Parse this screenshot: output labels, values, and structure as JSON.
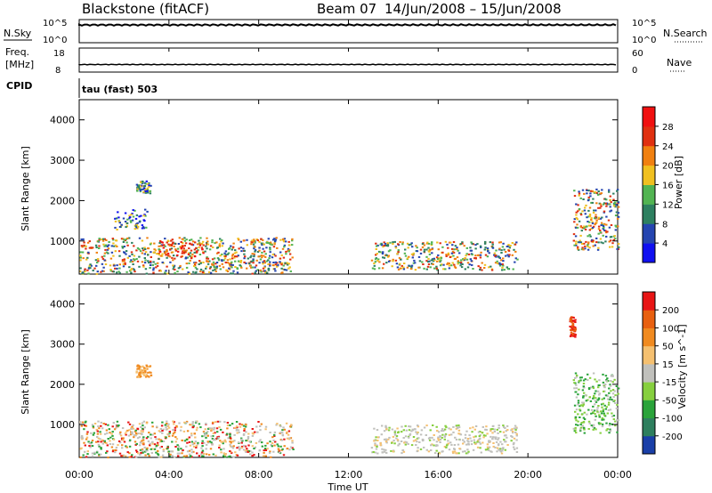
{
  "header": {
    "station": "Blackstone (fitACF)",
    "beam": "Beam 07",
    "date_range": "14/Jun/2008 – 15/Jun/2008"
  },
  "noise_panel": {
    "left_label": "N.Sky",
    "right_label": "N.Search",
    "left_top": "10^5",
    "left_bottom": "10^0",
    "right_top": "10^5",
    "right_bottom": "10^0"
  },
  "freq_panel": {
    "left_label_1": "Freq.",
    "left_label_2": "[MHz]",
    "left_top": "18",
    "left_bottom": "8",
    "right_label": "Nave",
    "right_top": "60",
    "right_bottom": "0"
  },
  "cpid_panel": {
    "label": "CPID",
    "value": "tau (fast) 503"
  },
  "x_axis": {
    "label": "Time UT",
    "ticks": [
      "00:00",
      "04:00",
      "08:00",
      "12:00",
      "16:00",
      "20:00",
      "00:00"
    ]
  },
  "colors": {
    "velocity_positive_high": "#1a3fa8",
    "velocity_positive_mid": "#2aa33a",
    "velocity_low": "#c0c0bc",
    "velocity_negative_mid": "#f5a020",
    "velocity_negative_high": "#e81515"
  },
  "chart_data": [
    {
      "type": "heatmap",
      "title": "Power",
      "ylabel": "Slant Range [km]",
      "xlabel": "",
      "xlim": [
        "00:00",
        "24:00"
      ],
      "ylim": [
        180,
        4500
      ],
      "y_ticks": [
        "1000",
        "2000",
        "3000",
        "4000"
      ],
      "colorbar": {
        "label": "Power [dB]",
        "ticks": [
          "4",
          "8",
          "12",
          "16",
          "20",
          "24",
          "28"
        ],
        "colors": [
          "#1010f0",
          "#2545b0",
          "#2e8060",
          "#52b452",
          "#f0c020",
          "#f08010",
          "#e03010",
          "#f01010"
        ]
      },
      "regions": [
        {
          "start": "00:00",
          "end": "09:30",
          "range": [
            200,
            1100
          ],
          "level": "strong"
        },
        {
          "start": "03:30",
          "end": "05:30",
          "range": [
            600,
            1000
          ],
          "level": "very strong"
        },
        {
          "start": "01:30",
          "end": "03:00",
          "range": [
            1300,
            1800
          ],
          "level": "moderate"
        },
        {
          "start": "02:30",
          "end": "03:10",
          "range": [
            2200,
            2500
          ],
          "level": "moderate"
        },
        {
          "start": "13:00",
          "end": "19:30",
          "range": [
            300,
            1000
          ],
          "level": "strong"
        },
        {
          "start": "22:00",
          "end": "24:00",
          "range": [
            800,
            2300
          ],
          "level": "strong"
        }
      ]
    },
    {
      "type": "heatmap",
      "title": "Velocity",
      "ylabel": "Slant Range [km]",
      "xlabel": "Time UT",
      "xlim": [
        "00:00",
        "24:00"
      ],
      "ylim": [
        180,
        4500
      ],
      "y_ticks": [
        "1000",
        "2000",
        "3000",
        "4000"
      ],
      "colorbar": {
        "label": "Velocity [m s^-1]",
        "ticks": [
          "200",
          "100",
          "50",
          "15",
          "-15",
          "-50",
          "-100",
          "-200"
        ],
        "colors": [
          "#1a3fa8",
          "#2e7f5e",
          "#2aa33a",
          "#86cf3e",
          "#c0c0bc",
          "#f5c070",
          "#f08a20",
          "#e86010",
          "#e81515"
        ]
      },
      "regions": [
        {
          "start": "00:00",
          "end": "09:30",
          "range": [
            200,
            1100
          ],
          "value": "near zero / negative"
        },
        {
          "start": "02:30",
          "end": "03:10",
          "range": [
            2200,
            2500
          ],
          "value": "-100"
        },
        {
          "start": "13:00",
          "end": "19:30",
          "range": [
            300,
            1000
          ],
          "value": "near zero"
        },
        {
          "start": "22:00",
          "end": "24:00",
          "range": [
            800,
            2300
          ],
          "value": "+50"
        },
        {
          "start": "21:50",
          "end": "22:05",
          "range": [
            3200,
            3700
          ],
          "value": "-200"
        }
      ]
    }
  ]
}
